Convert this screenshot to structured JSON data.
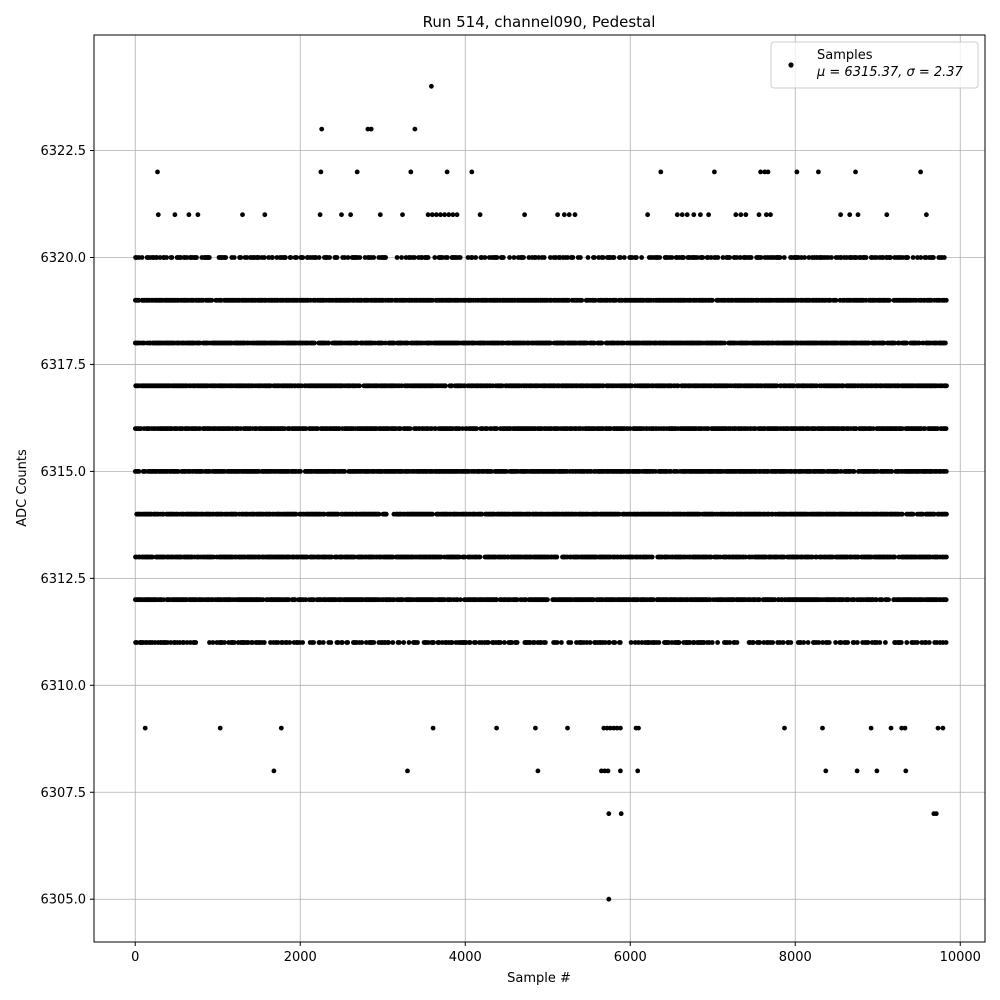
{
  "chart_data": {
    "type": "scatter",
    "title": "Run 514, channel090, Pedestal",
    "xlabel": "Sample #",
    "ylabel": "ADC Counts",
    "xlim": [
      -500,
      10300
    ],
    "ylim": [
      6304,
      6325.2
    ],
    "xticks": [
      0,
      2000,
      4000,
      6000,
      8000,
      10000
    ],
    "xtick_labels": [
      "0",
      "2000",
      "4000",
      "6000",
      "8000",
      "10000"
    ],
    "yticks": [
      6305.0,
      6307.5,
      6310.0,
      6312.5,
      6315.0,
      6317.5,
      6320.0,
      6322.5
    ],
    "ytick_labels": [
      "6305.0",
      "6307.5",
      "6310.0",
      "6312.5",
      "6315.0",
      "6317.5",
      "6320.0",
      "6322.5"
    ],
    "grid": true,
    "legend_position": "top-right",
    "marker_color": "#000000",
    "series": [
      {
        "name": "Samples",
        "label_stats": "μ = 6315.37, σ = 2.37",
        "x_range": [
          0,
          9830
        ],
        "value_levels": {
          "6313": "dense",
          "6314": "dense",
          "6315": "dense",
          "6316": "dense",
          "6317": "dense",
          "6318": "dense",
          "6312": "dense",
          "6319": "dense",
          "6311": "medium",
          "6320": "medium"
        },
        "sparse_points": [
          {
            "x": 270,
            "y": 6322
          },
          {
            "x": 2250,
            "y": 6322
          },
          {
            "x": 2690,
            "y": 6322
          },
          {
            "x": 3340,
            "y": 6322
          },
          {
            "x": 3780,
            "y": 6322
          },
          {
            "x": 4080,
            "y": 6322
          },
          {
            "x": 6370,
            "y": 6322
          },
          {
            "x": 7020,
            "y": 6322
          },
          {
            "x": 7580,
            "y": 6322
          },
          {
            "x": 7630,
            "y": 6322
          },
          {
            "x": 7670,
            "y": 6322
          },
          {
            "x": 8020,
            "y": 6322
          },
          {
            "x": 8280,
            "y": 6322
          },
          {
            "x": 8730,
            "y": 6322
          },
          {
            "x": 9520,
            "y": 6322
          },
          {
            "x": 2260,
            "y": 6323
          },
          {
            "x": 2820,
            "y": 6323
          },
          {
            "x": 2860,
            "y": 6323
          },
          {
            "x": 3390,
            "y": 6323
          },
          {
            "x": 3590,
            "y": 6324
          },
          {
            "x": 280,
            "y": 6321
          },
          {
            "x": 480,
            "y": 6321
          },
          {
            "x": 650,
            "y": 6321
          },
          {
            "x": 760,
            "y": 6321
          },
          {
            "x": 1300,
            "y": 6321
          },
          {
            "x": 1570,
            "y": 6321
          },
          {
            "x": 2240,
            "y": 6321
          },
          {
            "x": 2500,
            "y": 6321
          },
          {
            "x": 2610,
            "y": 6321
          },
          {
            "x": 2970,
            "y": 6321
          },
          {
            "x": 3240,
            "y": 6321
          },
          {
            "x": 3550,
            "y": 6321
          },
          {
            "x": 3600,
            "y": 6321
          },
          {
            "x": 3650,
            "y": 6321
          },
          {
            "x": 3700,
            "y": 6321
          },
          {
            "x": 3750,
            "y": 6321
          },
          {
            "x": 3800,
            "y": 6321
          },
          {
            "x": 3850,
            "y": 6321
          },
          {
            "x": 3900,
            "y": 6321
          },
          {
            "x": 4180,
            "y": 6321
          },
          {
            "x": 4720,
            "y": 6321
          },
          {
            "x": 5120,
            "y": 6321
          },
          {
            "x": 5200,
            "y": 6321
          },
          {
            "x": 5260,
            "y": 6321
          },
          {
            "x": 5330,
            "y": 6321
          },
          {
            "x": 6210,
            "y": 6321
          },
          {
            "x": 6570,
            "y": 6321
          },
          {
            "x": 6630,
            "y": 6321
          },
          {
            "x": 6690,
            "y": 6321
          },
          {
            "x": 6770,
            "y": 6321
          },
          {
            "x": 6850,
            "y": 6321
          },
          {
            "x": 6950,
            "y": 6321
          },
          {
            "x": 7280,
            "y": 6321
          },
          {
            "x": 7340,
            "y": 6321
          },
          {
            "x": 7400,
            "y": 6321
          },
          {
            "x": 7560,
            "y": 6321
          },
          {
            "x": 7650,
            "y": 6321
          },
          {
            "x": 7700,
            "y": 6321
          },
          {
            "x": 8550,
            "y": 6321
          },
          {
            "x": 8660,
            "y": 6321
          },
          {
            "x": 8760,
            "y": 6321
          },
          {
            "x": 9110,
            "y": 6321
          },
          {
            "x": 9590,
            "y": 6321
          },
          {
            "x": 120,
            "y": 6309
          },
          {
            "x": 1030,
            "y": 6309
          },
          {
            "x": 1770,
            "y": 6309
          },
          {
            "x": 3610,
            "y": 6309
          },
          {
            "x": 4380,
            "y": 6309
          },
          {
            "x": 4850,
            "y": 6309
          },
          {
            "x": 5240,
            "y": 6309
          },
          {
            "x": 5680,
            "y": 6309
          },
          {
            "x": 5720,
            "y": 6309
          },
          {
            "x": 5760,
            "y": 6309
          },
          {
            "x": 5800,
            "y": 6309
          },
          {
            "x": 5840,
            "y": 6309
          },
          {
            "x": 5880,
            "y": 6309
          },
          {
            "x": 6070,
            "y": 6309
          },
          {
            "x": 6100,
            "y": 6309
          },
          {
            "x": 7870,
            "y": 6309
          },
          {
            "x": 8330,
            "y": 6309
          },
          {
            "x": 8920,
            "y": 6309
          },
          {
            "x": 9160,
            "y": 6309
          },
          {
            "x": 9290,
            "y": 6309
          },
          {
            "x": 9330,
            "y": 6309
          },
          {
            "x": 9730,
            "y": 6309
          },
          {
            "x": 9790,
            "y": 6309
          },
          {
            "x": 1680,
            "y": 6308
          },
          {
            "x": 3300,
            "y": 6308
          },
          {
            "x": 4880,
            "y": 6308
          },
          {
            "x": 5650,
            "y": 6308
          },
          {
            "x": 5690,
            "y": 6308
          },
          {
            "x": 5730,
            "y": 6308
          },
          {
            "x": 5880,
            "y": 6308
          },
          {
            "x": 6090,
            "y": 6308
          },
          {
            "x": 8370,
            "y": 6308
          },
          {
            "x": 8750,
            "y": 6308
          },
          {
            "x": 8990,
            "y": 6308
          },
          {
            "x": 9340,
            "y": 6308
          },
          {
            "x": 5740,
            "y": 6307
          },
          {
            "x": 5890,
            "y": 6307
          },
          {
            "x": 9680,
            "y": 6307
          },
          {
            "x": 9710,
            "y": 6307
          },
          {
            "x": 5740,
            "y": 6305
          }
        ]
      }
    ]
  }
}
